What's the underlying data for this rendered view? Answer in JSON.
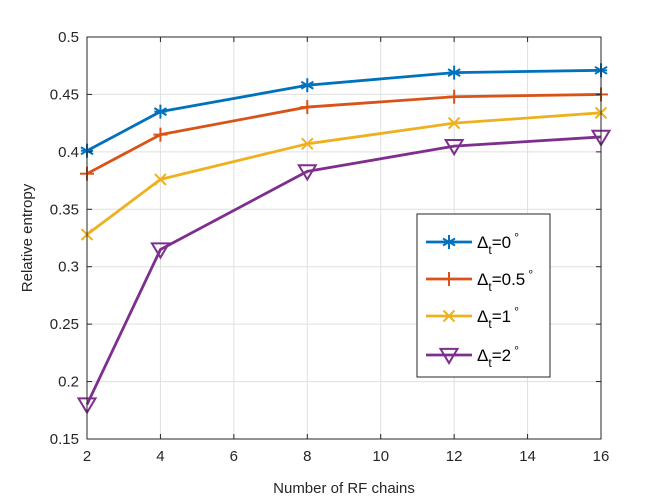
{
  "chart_data": {
    "type": "line",
    "title": "",
    "xlabel": "Number of RF chains",
    "ylabel": "Relative entropy",
    "x": [
      2,
      4,
      8,
      12,
      16
    ],
    "xlim": [
      2,
      16
    ],
    "ylim": [
      0.15,
      0.5
    ],
    "xticks": [
      2,
      4,
      6,
      8,
      10,
      12,
      14,
      16
    ],
    "yticks": [
      0.15,
      0.2,
      0.25,
      0.3,
      0.35,
      0.4,
      0.45,
      0.5
    ],
    "xtick_labels": [
      "2",
      "4",
      "6",
      "8",
      "10",
      "12",
      "14",
      "16"
    ],
    "ytick_labels": [
      "0.15",
      "0.2",
      "0.25",
      "0.3",
      "0.35",
      "0.4",
      "0.45",
      "0.5"
    ],
    "grid": true,
    "legend_position": "middle-right",
    "series": [
      {
        "name": "Δt=0°",
        "legend_main": "Δ",
        "legend_sub": "t",
        "legend_val": "=0",
        "legend_sup": "∘",
        "color": "#0072BD",
        "marker": "asterisk",
        "values": [
          0.401,
          0.435,
          0.458,
          0.469,
          0.471
        ]
      },
      {
        "name": "Δt=0.5°",
        "legend_main": "Δ",
        "legend_sub": "t",
        "legend_val": "=0.5",
        "legend_sup": "∘",
        "color": "#D95319",
        "marker": "plus",
        "values": [
          0.381,
          0.415,
          0.439,
          0.448,
          0.45
        ]
      },
      {
        "name": "Δt=1°",
        "legend_main": "Δ",
        "legend_sub": "t",
        "legend_val": "=1",
        "legend_sup": "∘",
        "color": "#EDB120",
        "marker": "x",
        "values": [
          0.328,
          0.376,
          0.407,
          0.425,
          0.434
        ]
      },
      {
        "name": "Δt=2°",
        "legend_main": "Δ",
        "legend_sub": "t",
        "legend_val": "=2",
        "legend_sup": "∘",
        "color": "#7E2F8E",
        "marker": "triangle-down",
        "values": [
          0.18,
          0.315,
          0.383,
          0.405,
          0.413
        ]
      }
    ]
  }
}
